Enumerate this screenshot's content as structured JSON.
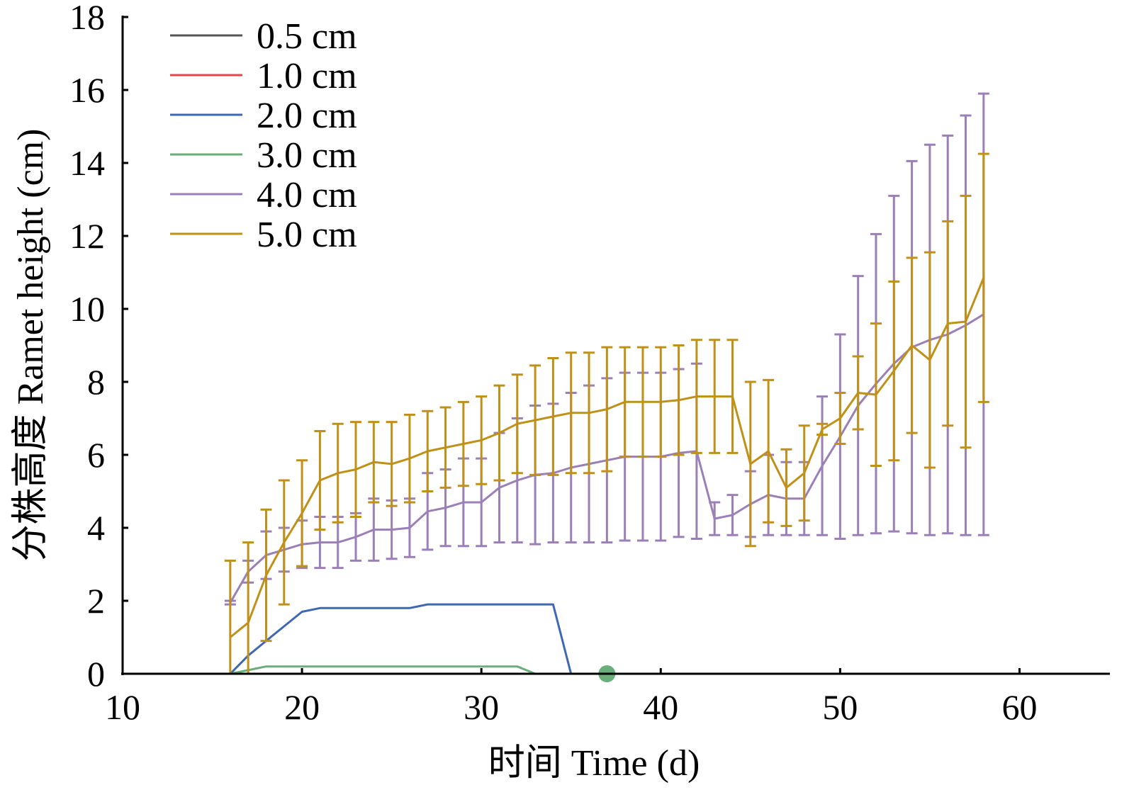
{
  "chart_data": {
    "type": "line",
    "title": "",
    "xlabel": "时间 Time (d)",
    "ylabel": "分株高度 Ramet height (cm)",
    "xlim": [
      10,
      65
    ],
    "ylim": [
      0,
      18
    ],
    "xticks": [
      10,
      20,
      30,
      40,
      50,
      60
    ],
    "yticks": [
      0,
      2,
      4,
      6,
      8,
      10,
      12,
      14,
      16,
      18
    ],
    "legend_position": "top-left",
    "grid": false,
    "series": [
      {
        "name": "0.5 cm",
        "color": "#555555",
        "x": [
          16,
          17,
          18,
          19,
          20,
          21,
          22,
          23,
          24,
          25,
          26,
          27,
          28,
          29,
          30,
          31,
          32,
          33
        ],
        "y": [
          0,
          0,
          0,
          0,
          0,
          0,
          0,
          0,
          0,
          0,
          0,
          0,
          0,
          0,
          0,
          0,
          0,
          0
        ]
      },
      {
        "name": "1.0 cm",
        "color": "#e0474c",
        "x": [
          16,
          17,
          18,
          19,
          20,
          21,
          22,
          23,
          24,
          25,
          26,
          27,
          28,
          29,
          30,
          31,
          32,
          33
        ],
        "y": [
          0,
          0,
          0,
          0,
          0,
          0,
          0,
          0,
          0,
          0,
          0,
          0,
          0,
          0,
          0,
          0,
          0,
          0
        ]
      },
      {
        "name": "2.0 cm",
        "color": "#3f68b4",
        "x": [
          16,
          17,
          18,
          19,
          20,
          21,
          22,
          23,
          24,
          25,
          26,
          27,
          28,
          29,
          30,
          31,
          32,
          33,
          34,
          35
        ],
        "y": [
          0,
          0.5,
          0.9,
          1.3,
          1.7,
          1.8,
          1.8,
          1.8,
          1.8,
          1.8,
          1.8,
          1.9,
          1.9,
          1.9,
          1.9,
          1.9,
          1.9,
          1.9,
          1.9,
          0
        ]
      },
      {
        "name": "3.0 cm",
        "color": "#6aae7c",
        "x": [
          16,
          17,
          18,
          19,
          20,
          21,
          22,
          23,
          24,
          25,
          26,
          27,
          28,
          29,
          30,
          31,
          32,
          33,
          34,
          35,
          36,
          37,
          38,
          39,
          40,
          41,
          42,
          43,
          44,
          45,
          46,
          47,
          48,
          49,
          50,
          51,
          52,
          53,
          54,
          55,
          56,
          57,
          58
        ],
        "y": [
          0,
          0.1,
          0.2,
          0.2,
          0.2,
          0.2,
          0.2,
          0.2,
          0.2,
          0.2,
          0.2,
          0.2,
          0.2,
          0.2,
          0.2,
          0.2,
          0.2,
          0,
          0,
          0,
          0,
          0,
          0,
          0,
          0,
          0,
          0,
          0,
          0,
          0,
          0,
          0,
          0,
          0,
          0,
          0,
          0,
          0,
          0,
          0,
          0,
          0,
          0
        ],
        "markers": [
          {
            "x": 37,
            "y": 0
          }
        ]
      },
      {
        "name": "4.0 cm",
        "color": "#9b7fb7",
        "x": [
          16,
          17,
          18,
          19,
          20,
          21,
          22,
          23,
          24,
          25,
          26,
          27,
          28,
          29,
          30,
          31,
          32,
          33,
          34,
          35,
          36,
          37,
          38,
          39,
          40,
          41,
          42,
          43,
          44,
          45,
          46,
          47,
          48,
          49,
          50,
          51,
          52,
          53,
          54,
          55,
          56,
          57,
          58
        ],
        "y": [
          1.95,
          2.8,
          3.25,
          3.4,
          3.55,
          3.6,
          3.6,
          3.75,
          3.95,
          3.95,
          4.0,
          4.45,
          4.55,
          4.7,
          4.7,
          5.1,
          5.3,
          5.45,
          5.5,
          5.65,
          5.75,
          5.85,
          5.95,
          5.95,
          5.95,
          6.05,
          6.1,
          4.25,
          4.35,
          4.65,
          4.9,
          4.8,
          4.8,
          5.7,
          6.5,
          7.35,
          7.95,
          8.5,
          8.95,
          9.15,
          9.3,
          9.55,
          9.85
        ],
        "error": [
          0.05,
          0.3,
          0.65,
          0.6,
          0.65,
          0.7,
          0.7,
          0.65,
          0.85,
          0.8,
          0.8,
          1.05,
          1.05,
          1.2,
          1.2,
          1.5,
          1.7,
          1.9,
          1.9,
          2.05,
          2.15,
          2.25,
          2.3,
          2.3,
          2.3,
          2.3,
          2.4,
          0.45,
          0.55,
          0.9,
          1.1,
          1.0,
          1.0,
          1.9,
          2.8,
          3.55,
          4.1,
          4.6,
          5.1,
          5.35,
          5.45,
          5.75,
          6.05
        ]
      },
      {
        "name": "5.0 cm",
        "color": "#bf9119",
        "x": [
          16,
          17,
          18,
          19,
          20,
          21,
          22,
          23,
          24,
          25,
          26,
          27,
          28,
          29,
          30,
          31,
          32,
          33,
          34,
          35,
          36,
          37,
          38,
          39,
          40,
          41,
          42,
          43,
          44,
          45,
          46,
          47,
          48,
          49,
          50,
          51,
          52,
          53,
          54,
          55,
          56,
          57,
          58
        ],
        "y": [
          1.0,
          1.4,
          2.7,
          3.6,
          4.4,
          5.3,
          5.5,
          5.6,
          5.8,
          5.75,
          5.9,
          6.1,
          6.2,
          6.3,
          6.4,
          6.6,
          6.85,
          6.95,
          7.05,
          7.15,
          7.15,
          7.25,
          7.45,
          7.45,
          7.45,
          7.5,
          7.6,
          7.6,
          7.6,
          5.75,
          6.1,
          5.1,
          5.5,
          6.7,
          7.0,
          7.7,
          7.65,
          8.3,
          9.0,
          8.6,
          9.6,
          9.65,
          10.85
        ],
        "error": [
          2.1,
          2.2,
          1.8,
          1.7,
          1.45,
          1.35,
          1.35,
          1.3,
          1.1,
          1.15,
          1.2,
          1.1,
          1.1,
          1.15,
          1.2,
          1.3,
          1.35,
          1.5,
          1.6,
          1.65,
          1.65,
          1.7,
          1.5,
          1.5,
          1.5,
          1.5,
          1.55,
          1.55,
          1.55,
          2.25,
          1.95,
          1.05,
          1.3,
          0.15,
          0.7,
          1.0,
          1.95,
          2.45,
          2.4,
          2.95,
          2.8,
          3.45,
          3.4
        ]
      }
    ]
  }
}
